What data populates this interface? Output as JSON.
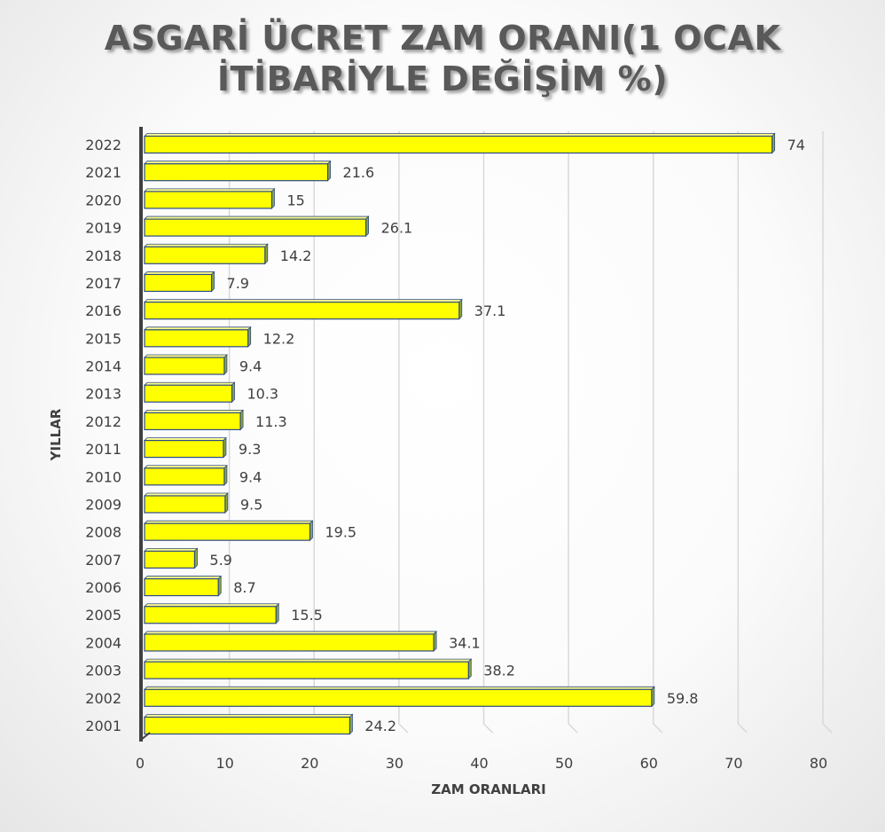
{
  "chart_data": {
    "type": "bar",
    "orientation": "horizontal",
    "title_line1": "ASGARİ ÜCRET ZAM ORANI(1 OCAK",
    "title_line2": "İTİBARİYLE DEĞİŞİM %)",
    "xlabel": "ZAM ORANLARI",
    "ylabel": "YILLAR",
    "categories": [
      "2001",
      "2002",
      "2003",
      "2004",
      "2005",
      "2006",
      "2007",
      "2008",
      "2009",
      "2010",
      "2011",
      "2012",
      "2013",
      "2014",
      "2015",
      "2016",
      "2017",
      "2018",
      "2019",
      "2020",
      "2021",
      "2022"
    ],
    "values": [
      24.2,
      59.8,
      38.2,
      34.1,
      15.5,
      8.7,
      5.9,
      19.5,
      9.5,
      9.4,
      9.3,
      11.3,
      10.3,
      9.4,
      12.2,
      37.1,
      7.9,
      14.2,
      26.1,
      15,
      21.6,
      74
    ],
    "xlim": [
      0,
      80
    ],
    "xticks": [
      0,
      10,
      20,
      30,
      40,
      50,
      60,
      70,
      80
    ],
    "grid": "vertical",
    "legend": "none",
    "bar_color": "#ffff00",
    "bar_side_color": "#8fa832",
    "bar_edge_color": "#2e4a86",
    "axis_color": "#404040",
    "grid_color": "#d9d9d9"
  }
}
